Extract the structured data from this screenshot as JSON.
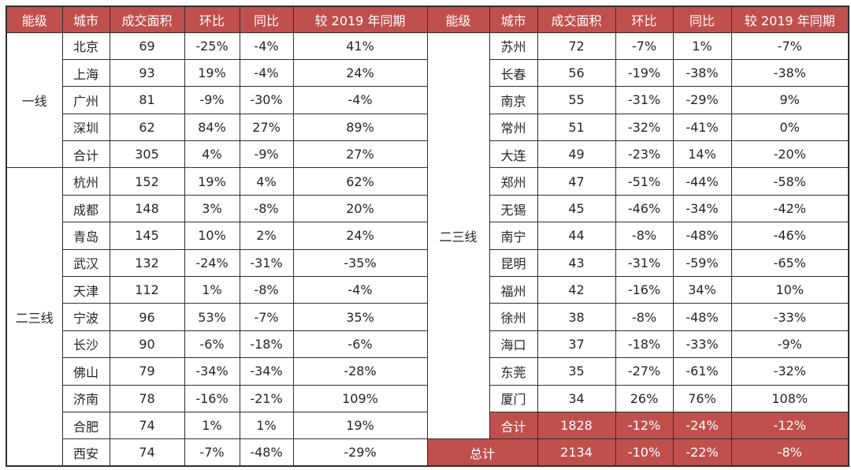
{
  "table": {
    "columns": [
      "能级",
      "城市",
      "成交面积",
      "环比",
      "同比",
      "较 2019 年同期"
    ],
    "left_panel": {
      "groups": [
        {
          "tier": "一线",
          "rows": [
            {
              "city": "北京",
              "area": "69",
              "mom": "-25%",
              "yoy": "-4%",
              "vs2019": "41%"
            },
            {
              "city": "上海",
              "area": "93",
              "mom": "19%",
              "yoy": "-4%",
              "vs2019": "24%"
            },
            {
              "city": "广州",
              "area": "81",
              "mom": "-9%",
              "yoy": "-30%",
              "vs2019": "-4%"
            },
            {
              "city": "深圳",
              "area": "62",
              "mom": "84%",
              "yoy": "27%",
              "vs2019": "89%"
            },
            {
              "city": "合计",
              "area": "305",
              "mom": "4%",
              "yoy": "-9%",
              "vs2019": "27%"
            }
          ]
        },
        {
          "tier": "二三线",
          "rows": [
            {
              "city": "杭州",
              "area": "152",
              "mom": "19%",
              "yoy": "4%",
              "vs2019": "62%"
            },
            {
              "city": "成都",
              "area": "148",
              "mom": "3%",
              "yoy": "-8%",
              "vs2019": "20%"
            },
            {
              "city": "青岛",
              "area": "145",
              "mom": "10%",
              "yoy": "2%",
              "vs2019": "24%"
            },
            {
              "city": "武汉",
              "area": "132",
              "mom": "-24%",
              "yoy": "-31%",
              "vs2019": "-35%"
            },
            {
              "city": "天津",
              "area": "112",
              "mom": "1%",
              "yoy": "-8%",
              "vs2019": "-4%"
            },
            {
              "city": "宁波",
              "area": "96",
              "mom": "53%",
              "yoy": "-7%",
              "vs2019": "35%"
            },
            {
              "city": "长沙",
              "area": "90",
              "mom": "-6%",
              "yoy": "-18%",
              "vs2019": "-6%"
            },
            {
              "city": "佛山",
              "area": "79",
              "mom": "-34%",
              "yoy": "-34%",
              "vs2019": "-28%"
            },
            {
              "city": "济南",
              "area": "78",
              "mom": "-16%",
              "yoy": "-21%",
              "vs2019": "109%"
            },
            {
              "city": "合肥",
              "area": "74",
              "mom": "1%",
              "yoy": "1%",
              "vs2019": "19%"
            },
            {
              "city": "西安",
              "area": "74",
              "mom": "-7%",
              "yoy": "-48%",
              "vs2019": "-29%"
            }
          ]
        }
      ]
    },
    "right_panel": {
      "tier": "二三线",
      "city_rows": [
        {
          "city": "苏州",
          "area": "72",
          "mom": "-7%",
          "yoy": "1%",
          "vs2019": "-7%"
        },
        {
          "city": "长春",
          "area": "56",
          "mom": "-19%",
          "yoy": "-38%",
          "vs2019": "-38%"
        },
        {
          "city": "南京",
          "area": "55",
          "mom": "-31%",
          "yoy": "-29%",
          "vs2019": "9%"
        },
        {
          "city": "常州",
          "area": "51",
          "mom": "-32%",
          "yoy": "-41%",
          "vs2019": "0%"
        },
        {
          "city": "大连",
          "area": "49",
          "mom": "-23%",
          "yoy": "14%",
          "vs2019": "-20%"
        },
        {
          "city": "郑州",
          "area": "47",
          "mom": "-51%",
          "yoy": "-44%",
          "vs2019": "-58%"
        },
        {
          "city": "无锡",
          "area": "45",
          "mom": "-46%",
          "yoy": "-34%",
          "vs2019": "-42%"
        },
        {
          "city": "南宁",
          "area": "44",
          "mom": "-8%",
          "yoy": "-48%",
          "vs2019": "-46%"
        },
        {
          "city": "昆明",
          "area": "43",
          "mom": "-31%",
          "yoy": "-59%",
          "vs2019": "-65%"
        },
        {
          "city": "福州",
          "area": "42",
          "mom": "-16%",
          "yoy": "34%",
          "vs2019": "10%"
        },
        {
          "city": "徐州",
          "area": "38",
          "mom": "-8%",
          "yoy": "-48%",
          "vs2019": "-33%"
        },
        {
          "city": "海口",
          "area": "37",
          "mom": "-18%",
          "yoy": "-33%",
          "vs2019": "-9%"
        },
        {
          "city": "东莞",
          "area": "35",
          "mom": "-27%",
          "yoy": "-61%",
          "vs2019": "-32%"
        },
        {
          "city": "厦门",
          "area": "34",
          "mom": "26%",
          "yoy": "76%",
          "vs2019": "108%"
        }
      ],
      "subtotal_row": {
        "label": "合计",
        "area": "1828",
        "mom": "-12%",
        "yoy": "-24%",
        "vs2019": "-12%"
      },
      "grand_total_row": {
        "label": "总计",
        "area": "2134",
        "mom": "-10%",
        "yoy": "-22%",
        "vs2019": "-8%"
      }
    },
    "colors": {
      "header_bg": "#c0504d",
      "header_text": "#ffffff",
      "highlight_bg": "#c0504d",
      "highlight_text": "#ffffff",
      "border": "#2f2f2f",
      "text": "#262626"
    }
  }
}
